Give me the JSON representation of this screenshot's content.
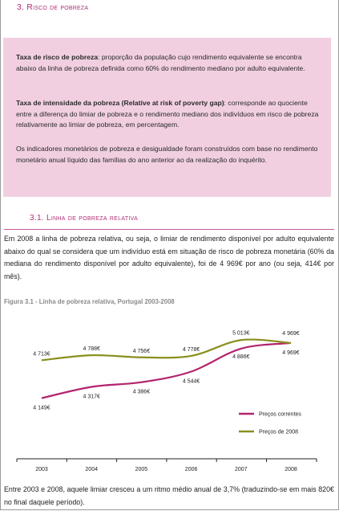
{
  "section": {
    "number": "3.",
    "title": "Risco de pobreza"
  },
  "box": {
    "p1_term": "Taxa de risco de pobreza",
    "p1_text": ": proporção da população cujo rendimento equivalente se encontra abaixo da linha de pobreza definida como 60% do rendimento mediano por adulto equivalente.",
    "p2_term": "Taxa de intensidade da pobreza (Relative at risk of poverty gap)",
    "p2_text": ": corresponde ao quociente entre a diferença do limiar de pobreza e o rendimento mediano dos indivíduos em risco de pobreza relativamente ao limiar de pobreza, em percentagem.",
    "p3_text": "Os indicadores monetários de pobreza e desigualdade foram construídos com base no rendimento monetário anual líquido das famílias do ano anterior ao da realização do inquérito."
  },
  "subsection": {
    "number": "3.1.",
    "title": "Linha de pobreza relativa"
  },
  "paragraph1": "Em 2008 a linha de pobreza relativa, ou seja, o limiar de rendimento disponível por adulto equivalente abaixo do qual se considera que um indivíduo está em situação de risco de pobreza monetária (60% da mediana do rendimento disponível por adulto equivalente), foi de 4 969€ por ano (ou seja, 414€ por mês).",
  "figure_caption": "Figura 3.1 - Linha de pobreza relativa, Portugal 2003-2008",
  "paragraph2": "Entre 2003 e 2008, aquele limiar cresceu a um ritmo médio anual de 3,7% (traduzindo-se em mais 820€ no final daquele período).",
  "chart_data": {
    "type": "line",
    "title": "Linha de pobreza relativa, Portugal 2003-2008",
    "x": [
      "2003",
      "2004",
      "2005",
      "2006",
      "2007",
      "2008"
    ],
    "ylim": [
      4000,
      5100
    ],
    "grid": false,
    "legend_position": "bottom-right",
    "series": [
      {
        "name": "Preços correntes",
        "color": "#b3246f",
        "values": [
          4149,
          4317,
          4386,
          4544,
          4886,
          4969
        ],
        "labels": [
          "4 149€",
          "4 317€",
          "4 386€",
          "4 544€",
          "4 886€",
          "4 969€"
        ]
      },
      {
        "name": "Preços de 2008",
        "color": "#8a8f1d",
        "values": [
          4713,
          4788,
          4756,
          4778,
          5013,
          4969
        ],
        "labels": [
          "4 713€",
          "4 788€",
          "4 756€",
          "4 778€",
          "5 013€",
          "4 969€"
        ]
      }
    ]
  }
}
